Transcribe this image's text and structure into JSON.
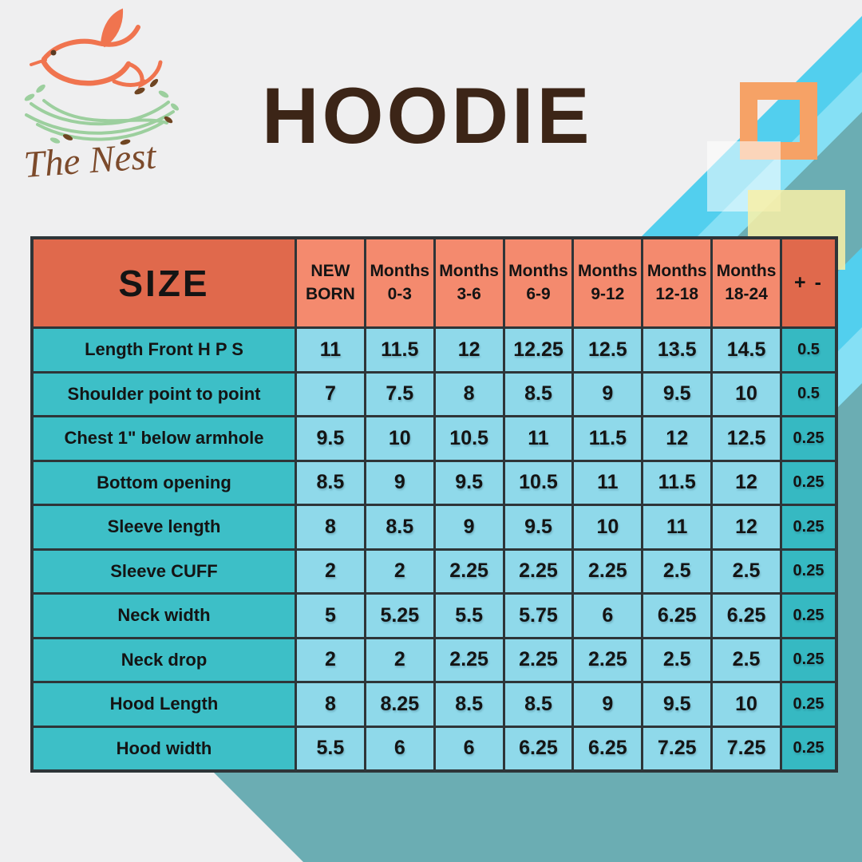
{
  "logo": {
    "brand_name": "The Nest"
  },
  "page_title": "HOODIE",
  "chart_data": {
    "type": "table",
    "title": "HOODIE",
    "corner_header": "SIZE",
    "tolerance_header": "+ -",
    "age_columns": [
      [
        "NEW",
        "BORN"
      ],
      [
        "Months",
        "0-3"
      ],
      [
        "Months",
        "3-6"
      ],
      [
        "Months",
        "6-9"
      ],
      [
        "Months",
        "9-12"
      ],
      [
        "Months",
        "12-18"
      ],
      [
        "Months",
        "18-24"
      ]
    ],
    "rows": [
      {
        "label": "Length Front H P S",
        "values": [
          "11",
          "11.5",
          "12",
          "12.25",
          "12.5",
          "13.5",
          "14.5"
        ],
        "tolerance": "0.5"
      },
      {
        "label": "Shoulder point to point",
        "values": [
          "7",
          "7.5",
          "8",
          "8.5",
          "9",
          "9.5",
          "10"
        ],
        "tolerance": "0.5"
      },
      {
        "label": "Chest 1\" below armhole",
        "values": [
          "9.5",
          "10",
          "10.5",
          "11",
          "11.5",
          "12",
          "12.5"
        ],
        "tolerance": "0.25"
      },
      {
        "label": "Bottom opening",
        "values": [
          "8.5",
          "9",
          "9.5",
          "10.5",
          "11",
          "11.5",
          "12"
        ],
        "tolerance": "0.25"
      },
      {
        "label": "Sleeve length",
        "values": [
          "8",
          "8.5",
          "9",
          "9.5",
          "10",
          "11",
          "12"
        ],
        "tolerance": "0.25"
      },
      {
        "label": "Sleeve CUFF",
        "values": [
          "2",
          "2",
          "2.25",
          "2.25",
          "2.25",
          "2.5",
          "2.5"
        ],
        "tolerance": "0.25"
      },
      {
        "label": "Neck width",
        "values": [
          "5",
          "5.25",
          "5.5",
          "5.75",
          "6",
          "6.25",
          "6.25"
        ],
        "tolerance": "0.25"
      },
      {
        "label": "Neck drop",
        "values": [
          "2",
          "2",
          "2.25",
          "2.25",
          "2.25",
          "2.5",
          "2.5"
        ],
        "tolerance": "0.25"
      },
      {
        "label": "Hood Length",
        "values": [
          "8",
          "8.25",
          "8.5",
          "8.5",
          "9",
          "9.5",
          "10"
        ],
        "tolerance": "0.25"
      },
      {
        "label": "Hood width",
        "values": [
          "5.5",
          "6",
          "6",
          "6.25",
          "6.25",
          "7.25",
          "7.25"
        ],
        "tolerance": "0.25"
      }
    ]
  },
  "colors": {
    "page_background": "#efeff0",
    "teal_band": "#6badb3",
    "cyan_band": "#52cfee",
    "cyan_band_light": "#85e0f5",
    "orange_frame": "#f6a266",
    "yellow_square": "#f9f0a6",
    "header_dark_orange": "#e0694c",
    "header_light_coral": "#f48a6e",
    "row_label_teal": "#3dbfc7",
    "tolerance_teal": "#36b9c2",
    "value_cell_blue": "#8fd9ea",
    "grid_line": "#2e3538",
    "title_brown": "#3c2517",
    "brand_brown": "#7c4a2b",
    "bird_orange": "#f0744f",
    "nest_green": "#9ccf9e",
    "leaf_brown": "#6f4522"
  }
}
